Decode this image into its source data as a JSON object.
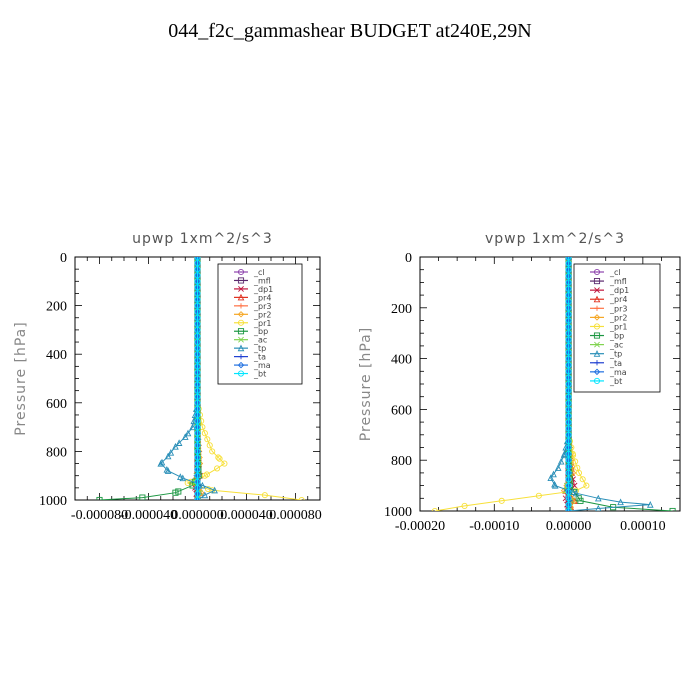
{
  "figure": {
    "title": "044_f2c_gammashear  BUDGET at240E,29N"
  },
  "legend_entries": [
    {
      "label": "_cl",
      "color": "#8e44ad"
    },
    {
      "label": "_mfl",
      "color": "#5b2a6e"
    },
    {
      "label": "_dp1",
      "color": "#c0143c"
    },
    {
      "label": "_pr4",
      "color": "#e0301e"
    },
    {
      "label": "_pr3",
      "color": "#ff7043"
    },
    {
      "label": "_pr2",
      "color": "#f5a623"
    },
    {
      "label": "_pr1",
      "color": "#f7e03a"
    },
    {
      "label": "_bp",
      "color": "#1a9641"
    },
    {
      "label": "_ac",
      "color": "#7fd34e"
    },
    {
      "label": "_tp",
      "color": "#2a8fb8"
    },
    {
      "label": "_ta",
      "color": "#1f3fd1"
    },
    {
      "label": "_ma",
      "color": "#1f6fe0"
    },
    {
      "label": "_bt",
      "color": "#00e5ff"
    }
  ],
  "chart_data": [
    {
      "type": "line",
      "title": "upwp   1xm^2/s^3",
      "ylabel": "Pressure  [hPa]",
      "xlim": [
        -0.0001,
        0.0001
      ],
      "ylim": [
        1000,
        0
      ],
      "xtick_labels": [
        "-0.000080",
        "-0.000040",
        "0.000000",
        "0.000040",
        "0.000080"
      ],
      "xtick_values": [
        -8e-05,
        -4e-05,
        0,
        4e-05,
        8e-05
      ],
      "ytick_labels": [
        "0",
        "200",
        "400",
        "600",
        "800",
        "1000"
      ],
      "ytick_values": [
        0,
        200,
        400,
        600,
        800,
        1000
      ],
      "series": [
        {
          "name": "_cl",
          "y": [
            0,
            300,
            600,
            800,
            900,
            1000
          ],
          "x": [
            0,
            0,
            0,
            0,
            0,
            0
          ]
        },
        {
          "name": "_mfl",
          "y": [
            0,
            300,
            600,
            800,
            900,
            1000
          ],
          "x": [
            0,
            0,
            0,
            0,
            0,
            0
          ]
        },
        {
          "name": "_dp1",
          "y": [
            0,
            600,
            850,
            900,
            950,
            1000
          ],
          "x": [
            0,
            0,
            0,
            2e-06,
            -2e-06,
            0
          ]
        },
        {
          "name": "_pr4",
          "y": [
            0,
            700,
            850,
            930,
            970,
            1000
          ],
          "x": [
            0,
            0,
            1e-06,
            -2e-06,
            2e-06,
            0
          ]
        },
        {
          "name": "_pr3",
          "y": [
            0,
            700,
            850,
            930,
            970,
            1000
          ],
          "x": [
            0,
            0,
            1e-06,
            -1e-06,
            1e-06,
            0
          ]
        },
        {
          "name": "_pr2",
          "y": [
            0,
            700,
            850,
            930,
            970,
            1000
          ],
          "x": [
            0,
            0,
            2e-06,
            -2e-06,
            3e-06,
            0
          ]
        },
        {
          "name": "_pr1",
          "y": [
            0,
            600,
            700,
            750,
            800,
            830,
            850,
            870,
            900,
            930,
            960,
            980,
            1000
          ],
          "x": [
            0,
            0,
            4e-06,
            8e-06,
            1.2e-05,
            1.8e-05,
            2.2e-05,
            1.6e-05,
            6e-06,
            -8e-06,
            1.2e-05,
            5.5e-05,
            8.5e-05
          ]
        },
        {
          "name": "_bp",
          "y": [
            0,
            800,
            900,
            940,
            970,
            990,
            1000
          ],
          "x": [
            0,
            0,
            1e-06,
            -4e-06,
            -1.8e-05,
            -4.5e-05,
            -8e-05
          ]
        },
        {
          "name": "_ac",
          "y": [
            0,
            700,
            850,
            930,
            970,
            1000
          ],
          "x": [
            0,
            0,
            1e-06,
            -2e-06,
            2e-06,
            0
          ]
        },
        {
          "name": "_tp",
          "y": [
            0,
            600,
            700,
            740,
            780,
            820,
            850,
            880,
            910,
            940,
            960,
            980,
            1000
          ],
          "x": [
            0,
            0,
            -4e-06,
            -1e-05,
            -1.8e-05,
            -2.4e-05,
            -3e-05,
            -2.4e-05,
            -1.2e-05,
            4e-06,
            1.4e-05,
            6e-06,
            0
          ]
        },
        {
          "name": "_ta",
          "y": [
            0,
            600,
            800,
            900,
            950,
            1000
          ],
          "x": [
            0,
            0,
            1e-06,
            -1e-06,
            1e-06,
            0
          ]
        },
        {
          "name": "_ma",
          "y": [
            0,
            600,
            800,
            900,
            950,
            1000
          ],
          "x": [
            0,
            0,
            0,
            0,
            0,
            0
          ]
        },
        {
          "name": "_bt",
          "y": [
            0,
            300,
            600,
            900,
            1000
          ],
          "x": [
            0,
            0,
            0,
            0,
            0
          ]
        }
      ]
    },
    {
      "type": "line",
      "title": "vpwp   1xm^2/s^3",
      "ylabel": "Pressure  [hPa]",
      "xlim": [
        -0.0002,
        0.00015
      ],
      "ylim": [
        1000,
        0
      ],
      "xtick_labels": [
        "-0.00020",
        "-0.00010",
        "0.00000",
        "0.00010"
      ],
      "xtick_values": [
        -0.0002,
        -0.0001,
        0,
        0.0001
      ],
      "ytick_labels": [
        "0",
        "200",
        "400",
        "600",
        "800",
        "1000"
      ],
      "ytick_values": [
        0,
        200,
        400,
        600,
        800,
        1000
      ],
      "series": [
        {
          "name": "_cl",
          "y": [
            0,
            300,
            600,
            800,
            900,
            1000
          ],
          "x": [
            0,
            0,
            0,
            0,
            0,
            0
          ]
        },
        {
          "name": "_mfl",
          "y": [
            0,
            300,
            600,
            800,
            900,
            1000
          ],
          "x": [
            0,
            0,
            0,
            0,
            0,
            0
          ]
        },
        {
          "name": "_dp1",
          "y": [
            0,
            700,
            850,
            900,
            950,
            1000
          ],
          "x": [
            0,
            0,
            4e-06,
            8e-06,
            -4e-06,
            0
          ]
        },
        {
          "name": "_pr4",
          "y": [
            0,
            700,
            850,
            920,
            960,
            1000
          ],
          "x": [
            0,
            0,
            4e-06,
            -4e-06,
            8e-06,
            0
          ]
        },
        {
          "name": "_pr3",
          "y": [
            0,
            700,
            850,
            920,
            960,
            1000
          ],
          "x": [
            0,
            0,
            2e-06,
            -2e-06,
            4e-06,
            0
          ]
        },
        {
          "name": "_pr2",
          "y": [
            0,
            700,
            850,
            920,
            960,
            1000
          ],
          "x": [
            0,
            0,
            6e-06,
            -6e-06,
            8e-06,
            0
          ]
        },
        {
          "name": "_pr1",
          "y": [
            0,
            700,
            780,
            850,
            900,
            920,
            940,
            960,
            980,
            1000
          ],
          "x": [
            0,
            0,
            6e-06,
            1.4e-05,
            2.4e-05,
            1e-05,
            -4e-05,
            -9e-05,
            -0.00014,
            -0.00018
          ]
        },
        {
          "name": "_bp",
          "y": [
            0,
            800,
            900,
            960,
            985,
            1000
          ],
          "x": [
            0,
            0,
            2e-06,
            1.6e-05,
            6e-05,
            0.00014
          ]
        },
        {
          "name": "_ac",
          "y": [
            0,
            700,
            850,
            920,
            960,
            1000
          ],
          "x": [
            0,
            0,
            2e-06,
            -4e-06,
            4e-06,
            0
          ]
        },
        {
          "name": "_tp",
          "y": [
            0,
            700,
            780,
            830,
            870,
            900,
            930,
            950,
            965,
            975,
            990,
            1000
          ],
          "x": [
            0,
            0,
            -6e-06,
            -1.4e-05,
            -2.4e-05,
            -1.8e-05,
            1e-05,
            4e-05,
            7e-05,
            0.00011,
            4e-05,
            0
          ]
        },
        {
          "name": "_ta",
          "y": [
            0,
            700,
            850,
            920,
            960,
            1000
          ],
          "x": [
            0,
            0,
            2e-06,
            -2e-06,
            2e-06,
            0
          ]
        },
        {
          "name": "_ma",
          "y": [
            0,
            600,
            800,
            900,
            950,
            1000
          ],
          "x": [
            0,
            0,
            0,
            0,
            0,
            0
          ]
        },
        {
          "name": "_bt",
          "y": [
            0,
            300,
            600,
            900,
            1000
          ],
          "x": [
            0,
            0,
            0,
            0,
            0
          ]
        }
      ]
    }
  ]
}
